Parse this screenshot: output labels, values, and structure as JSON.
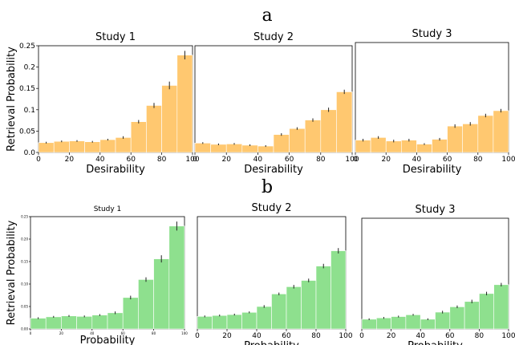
{
  "row_labels": [
    "a",
    "b"
  ],
  "colors": {
    "desirability": "#ffc870",
    "probability": "#8ee08e",
    "error": "#222222"
  },
  "chart_data": [
    {
      "type": "bar",
      "row": "a",
      "title": "Study 1",
      "xlabel": "Desirability",
      "ylabel": "Retrieval Probability",
      "xlim": [
        0,
        100
      ],
      "ylim": [
        0,
        0.25
      ],
      "xticks": [
        0,
        20,
        40,
        60,
        80,
        100
      ],
      "yticks": [
        0.0,
        0.05,
        0.1,
        0.15,
        0.2,
        0.25
      ],
      "ytick_labels": [
        "0.0",
        "0.05",
        "0.1",
        "0.15",
        "0.2",
        "0.25"
      ],
      "values": [
        0.023,
        0.026,
        0.027,
        0.025,
        0.03,
        0.035,
        0.072,
        0.11,
        0.157,
        0.228
      ],
      "errors": [
        0.002,
        0.002,
        0.002,
        0.002,
        0.002,
        0.003,
        0.004,
        0.006,
        0.009,
        0.01
      ]
    },
    {
      "type": "bar",
      "row": "a",
      "title": "Study 2",
      "xlabel": "Desirability",
      "ylabel": "",
      "xlim": [
        0,
        100
      ],
      "ylim": [
        0,
        0.25
      ],
      "xticks": [
        0,
        20,
        40,
        60,
        80,
        100
      ],
      "yticks": [],
      "ytick_labels": [],
      "values": [
        0.022,
        0.019,
        0.02,
        0.017,
        0.015,
        0.042,
        0.056,
        0.076,
        0.1,
        0.142
      ],
      "errors": [
        0.002,
        0.002,
        0.002,
        0.002,
        0.002,
        0.003,
        0.003,
        0.004,
        0.005,
        0.005
      ]
    },
    {
      "type": "bar",
      "row": "a",
      "title": "Study 3",
      "xlabel": "Desirability",
      "ylabel": "",
      "xlim": [
        0,
        100
      ],
      "ylim": [
        0,
        0.25
      ],
      "xticks": [
        0,
        20,
        40,
        60,
        80,
        100
      ],
      "yticks": [],
      "ytick_labels": [],
      "values": [
        0.028,
        0.034,
        0.026,
        0.028,
        0.019,
        0.03,
        0.06,
        0.065,
        0.084,
        0.095
      ],
      "errors": [
        0.003,
        0.003,
        0.003,
        0.003,
        0.002,
        0.003,
        0.004,
        0.004,
        0.004,
        0.004
      ]
    },
    {
      "type": "bar",
      "row": "b",
      "title": "Study 1",
      "xlabel": "Probability",
      "ylabel": "Retrieval Probability",
      "xlim": [
        0,
        100
      ],
      "ylim": [
        0,
        0.25
      ],
      "xticks": [
        0,
        20,
        40,
        60,
        80,
        100
      ],
      "yticks": [
        0.0,
        0.05,
        0.1,
        0.15,
        0.2,
        0.25
      ],
      "ytick_labels": [
        "0.00",
        "0.05",
        "0.10",
        "0.15",
        "0.20",
        "0.25"
      ],
      "values": [
        0.024,
        0.027,
        0.029,
        0.028,
        0.031,
        0.036,
        0.07,
        0.11,
        0.156,
        0.229
      ],
      "errors": [
        0.002,
        0.002,
        0.002,
        0.002,
        0.002,
        0.003,
        0.004,
        0.005,
        0.008,
        0.01
      ]
    },
    {
      "type": "bar",
      "row": "b",
      "title": "Study 2",
      "xlabel": "Probability",
      "ylabel": "",
      "xlim": [
        0,
        100
      ],
      "ylim": [
        0,
        0.25
      ],
      "xticks": [
        0,
        20,
        40,
        60,
        80,
        100
      ],
      "yticks": [],
      "ytick_labels": [],
      "values": [
        0.028,
        0.03,
        0.032,
        0.037,
        0.05,
        0.078,
        0.094,
        0.108,
        0.14,
        0.174
      ],
      "errors": [
        0.002,
        0.002,
        0.002,
        0.002,
        0.003,
        0.003,
        0.004,
        0.004,
        0.005,
        0.006
      ]
    },
    {
      "type": "bar",
      "row": "b",
      "title": "Study 3",
      "xlabel": "Probability",
      "ylabel": "",
      "xlim": [
        0,
        100
      ],
      "ylim": [
        0,
        0.25
      ],
      "xticks": [
        0,
        20,
        40,
        60,
        80,
        100
      ],
      "yticks": [],
      "ytick_labels": [],
      "values": [
        0.022,
        0.025,
        0.028,
        0.032,
        0.022,
        0.038,
        0.05,
        0.062,
        0.08,
        0.1
      ],
      "errors": [
        0.002,
        0.002,
        0.002,
        0.002,
        0.002,
        0.003,
        0.003,
        0.004,
        0.004,
        0.004
      ]
    }
  ]
}
